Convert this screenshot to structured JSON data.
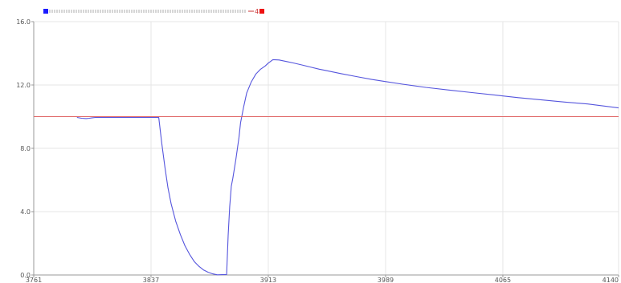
{
  "chart_data": {
    "type": "line",
    "title": "",
    "xlabel": "",
    "ylabel": "",
    "xlim": [
      3761,
      4140
    ],
    "ylim": [
      0,
      16
    ],
    "x_ticks": [
      3761,
      3837,
      3913,
      3989,
      4065,
      4140
    ],
    "x_tick_labels": [
      "3761",
      "3837",
      "3913",
      "3989",
      "4065",
      "4140"
    ],
    "y_ticks": [
      0,
      4,
      8,
      12,
      16
    ],
    "y_tick_labels": [
      "0.0",
      "4.0",
      "8.0",
      "12.0",
      "16.0"
    ],
    "grid": true,
    "legend": {
      "placement": "top-left",
      "start_marker_color": "#1a1aff",
      "end_marker_color": "#ee1111",
      "end_label": "4"
    },
    "series": [
      {
        "color": "#5555dd",
        "x": [
          3789,
          3792,
          3795,
          3797,
          3799,
          3801,
          3815,
          3842,
          3844,
          3846,
          3848,
          3850,
          3853,
          3856,
          3859,
          3862,
          3865,
          3868,
          3871,
          3874,
          3877,
          3880,
          3883,
          3886,
          3887,
          3888,
          3889,
          3890,
          3892,
          3894,
          3895,
          3897,
          3899,
          3902,
          3905,
          3908,
          3911,
          3913,
          3916,
          3920,
          3925,
          3930,
          3935,
          3940,
          3946,
          3950,
          3960,
          3970,
          3980,
          3990,
          4000,
          4015,
          4030,
          4045,
          4060,
          4075,
          4090,
          4105,
          4120,
          4140
        ],
        "y": [
          9.95,
          9.9,
          9.88,
          9.9,
          9.93,
          9.95,
          9.95,
          9.95,
          8.3,
          6.8,
          5.5,
          4.5,
          3.4,
          2.55,
          1.85,
          1.3,
          0.85,
          0.55,
          0.32,
          0.17,
          0.07,
          0.01,
          0.02,
          0.03,
          2.5,
          4.3,
          5.6,
          6.1,
          7.3,
          8.7,
          9.6,
          10.6,
          11.5,
          12.2,
          12.7,
          13.0,
          13.2,
          13.38,
          13.6,
          13.58,
          13.48,
          13.37,
          13.26,
          13.14,
          13.0,
          12.92,
          12.72,
          12.53,
          12.35,
          12.2,
          12.05,
          11.85,
          11.68,
          11.52,
          11.36,
          11.2,
          11.06,
          10.92,
          10.8,
          10.55
        ]
      },
      {
        "color": "#e06666",
        "x": [
          3761,
          4140
        ],
        "y": [
          10.0,
          10.0
        ]
      }
    ]
  }
}
